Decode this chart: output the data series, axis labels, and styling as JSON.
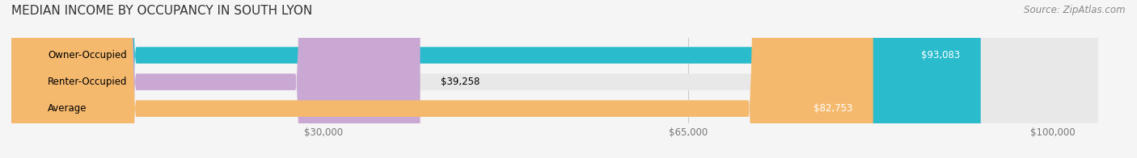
{
  "title": "MEDIAN INCOME BY OCCUPANCY IN SOUTH LYON",
  "source": "Source: ZipAtlas.com",
  "categories": [
    "Owner-Occupied",
    "Renter-Occupied",
    "Average"
  ],
  "values": [
    93083,
    39258,
    82753
  ],
  "bar_colors": [
    "#2abccc",
    "#c9a8d4",
    "#f5b96e"
  ],
  "bar_labels": [
    "$93,083",
    "$39,258",
    "$82,753"
  ],
  "x_ticks": [
    30000,
    65000,
    100000
  ],
  "x_tick_labels": [
    "$30,000",
    "$65,000",
    "$100,000"
  ],
  "xlim": [
    0,
    107000
  ],
  "background_color": "#f5f5f5",
  "bar_bg_color": "#e8e8e8",
  "title_fontsize": 11,
  "source_fontsize": 8.5,
  "label_fontsize": 8.5,
  "tick_fontsize": 8.5
}
